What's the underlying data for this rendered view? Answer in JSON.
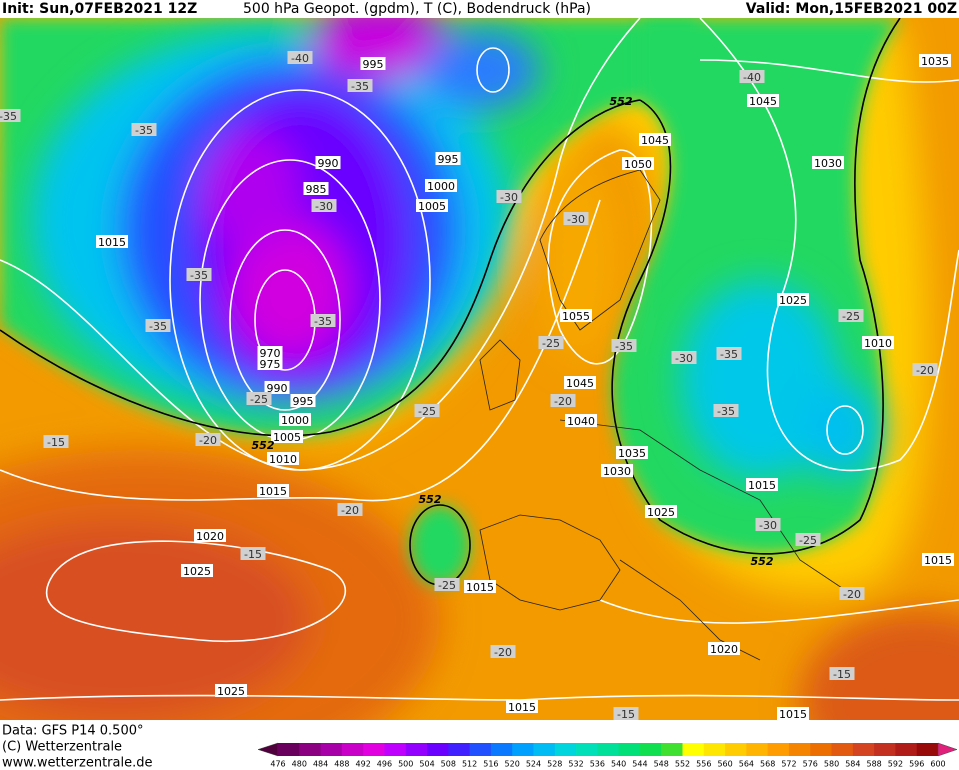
{
  "header": {
    "init": "Init: Sun,07FEB2021 12Z",
    "title": "500 hPa Geopot. (gpdm), T (C), Bodendruck (hPa)",
    "valid": "Valid: Mon,15FEB2021 00Z"
  },
  "footer": {
    "data_source": "Data: GFS P14 0.500°",
    "copyright": "(C) Wetterzentrale",
    "url": "www.wetterzentrale.de"
  },
  "isobar_labels": [
    "1015",
    "995",
    "990",
    "985",
    "995",
    "1000",
    "1005",
    "970",
    "975",
    "990",
    "995",
    "1000",
    "1005",
    "1010",
    "1015",
    "1020",
    "1025",
    "1025",
    "1045",
    "1050",
    "1045",
    "1035",
    "1030",
    "1025",
    "1010",
    "1055",
    "1045",
    "1040",
    "1035",
    "1030",
    "1025",
    "1015",
    "1015",
    "1015",
    "1020",
    "1015",
    "1015"
  ],
  "temperature_labels": [
    "-40",
    "-35",
    "-35",
    "-35",
    "-40",
    "-30",
    "-35",
    "-35",
    "-35",
    "-30",
    "-30",
    "-25",
    "-35",
    "-30",
    "-35",
    "-25",
    "-20",
    "-25",
    "-20",
    "-25",
    "-35",
    "-15",
    "-20",
    "-20",
    "-15",
    "-30",
    "-25",
    "-20",
    "-25",
    "-20",
    "-15",
    "-15"
  ],
  "geopotential_labels": [
    "552",
    "552",
    "552",
    "552"
  ],
  "colorbar": {
    "labels": [
      "476",
      "480",
      "484",
      "488",
      "492",
      "496",
      "500",
      "504",
      "508",
      "512",
      "516",
      "520",
      "524",
      "528",
      "532",
      "536",
      "540",
      "544",
      "548",
      "552",
      "556",
      "560",
      "564",
      "568",
      "572",
      "576",
      "580",
      "584",
      "588",
      "592",
      "596",
      "600"
    ],
    "colors": [
      "#6a005e",
      "#8a0080",
      "#a800a8",
      "#c800c8",
      "#e000e0",
      "#c000ff",
      "#9400ff",
      "#6a00ff",
      "#4020ff",
      "#2050ff",
      "#0a78ff",
      "#00a0ff",
      "#00bcf4",
      "#00d4dc",
      "#00e0b8",
      "#00e098",
      "#00e078",
      "#10e050",
      "#40e030",
      "#ffff00",
      "#ffe600",
      "#ffcc00",
      "#ffb400",
      "#ff9c00",
      "#f58400",
      "#ec6e00",
      "#e25a10",
      "#d44420",
      "#c43020",
      "#b01c18",
      "#980a0a"
    ]
  }
}
